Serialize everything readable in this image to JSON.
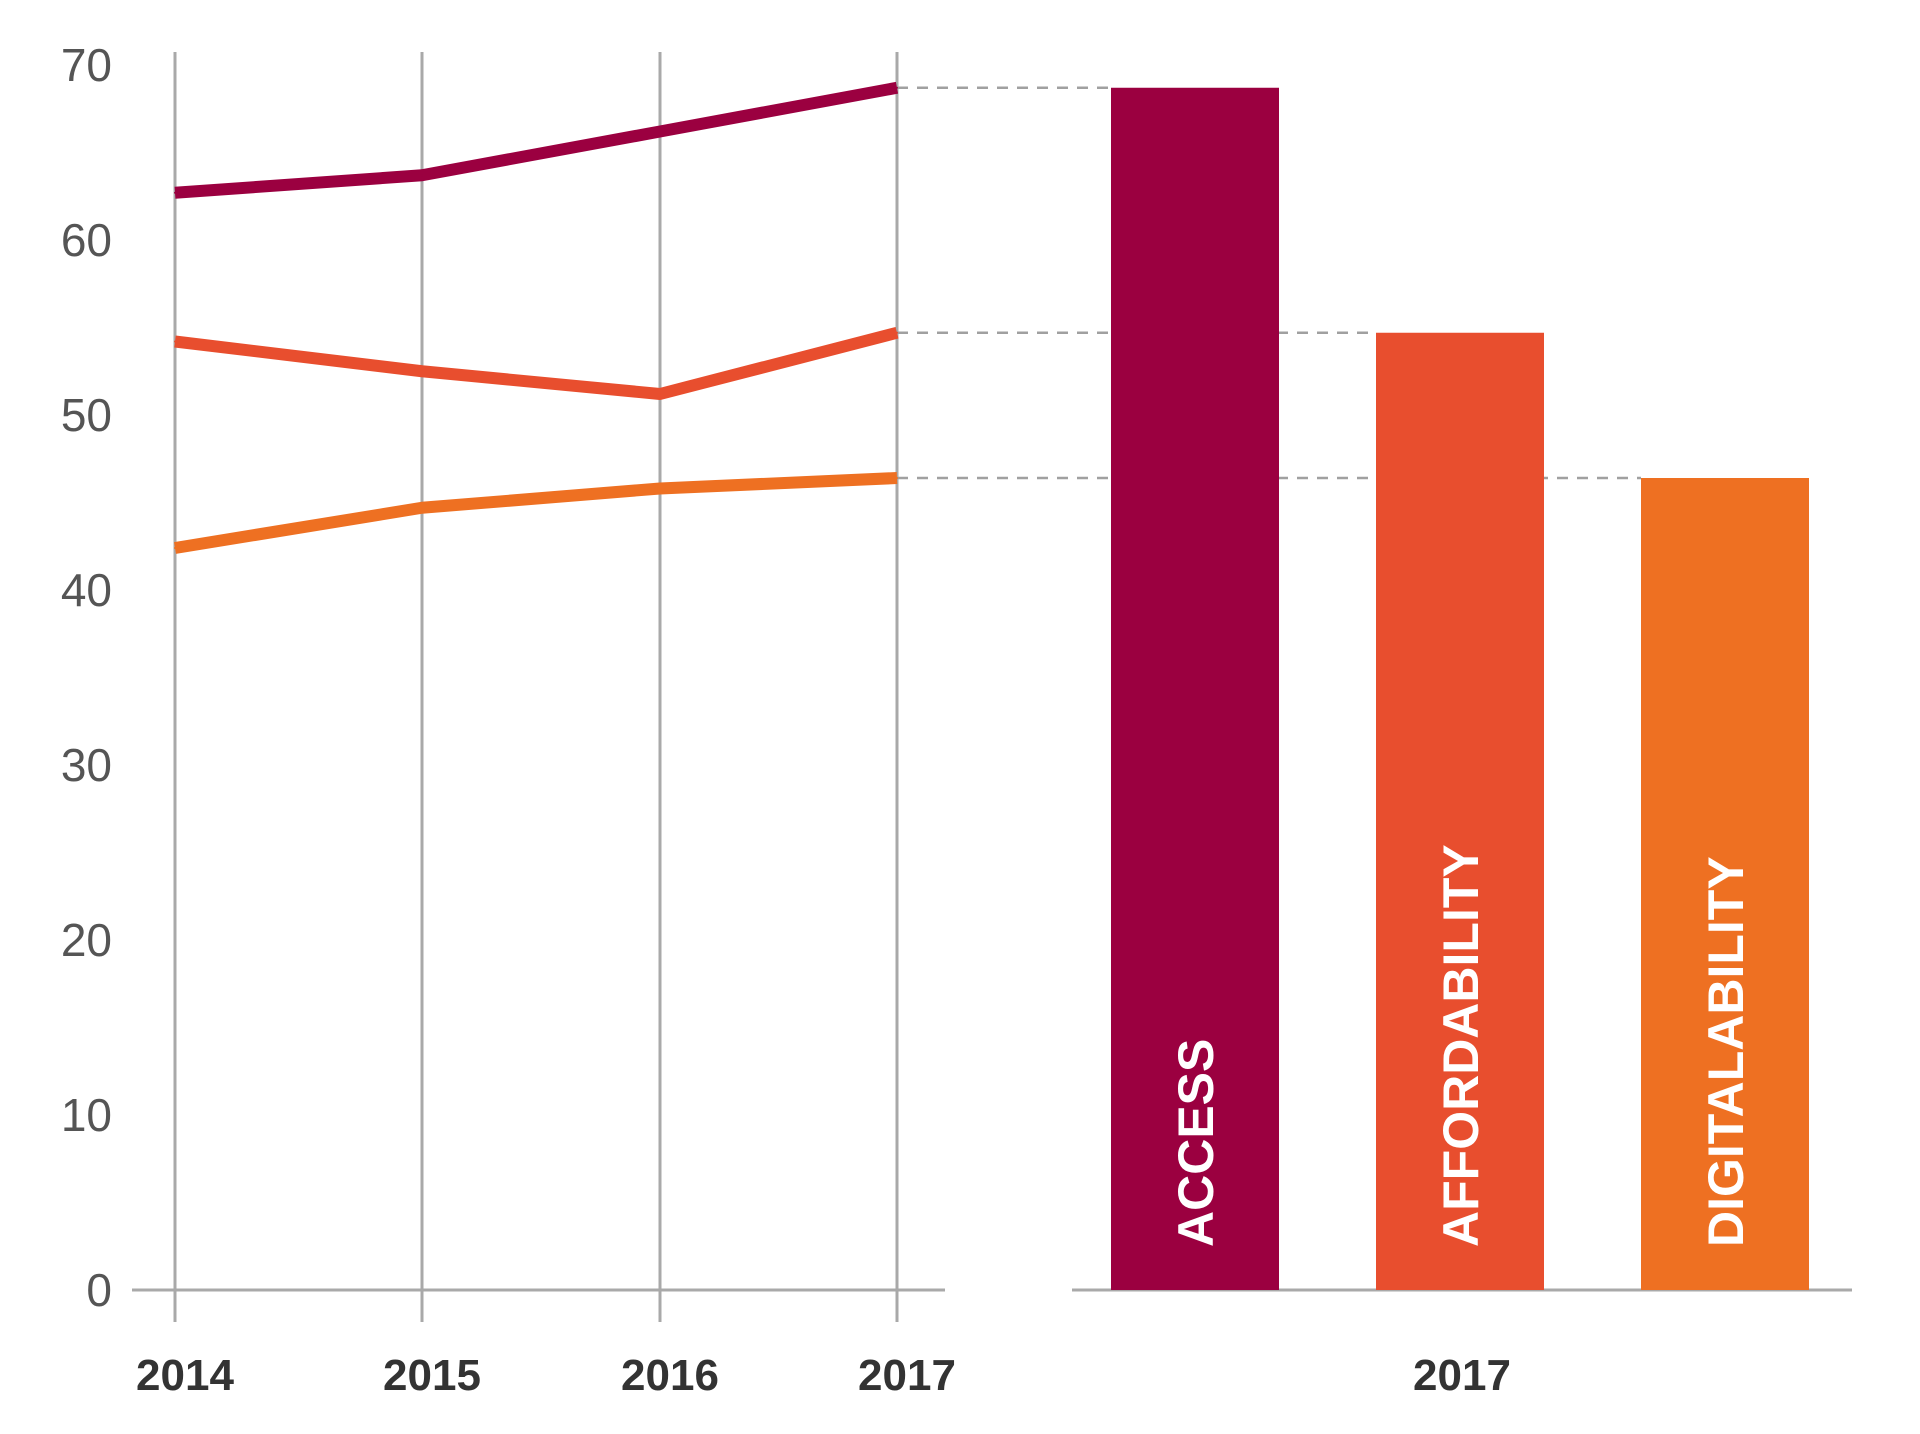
{
  "chart_data": [
    {
      "type": "line",
      "x": [
        "2014",
        "2015",
        "2016",
        "2017"
      ],
      "ylim": [
        0,
        70
      ],
      "yticks": [
        "0",
        "10",
        "20",
        "30",
        "40",
        "50",
        "60",
        "70"
      ],
      "grid": "vertical",
      "series": [
        {
          "name": "ACCESS",
          "values": [
            62.7,
            63.7,
            66.2,
            68.7
          ],
          "color": "#9B0040"
        },
        {
          "name": "AFFORDABILITY",
          "values": [
            54.2,
            52.5,
            51.2,
            54.7
          ],
          "color": "#E84E2E"
        },
        {
          "name": "DIGITAL ABILITY",
          "values": [
            42.4,
            44.7,
            45.8,
            46.4
          ],
          "color": "#EE7022"
        }
      ]
    },
    {
      "type": "bar",
      "xlabel": "2017",
      "ylim": [
        0,
        70
      ],
      "categories": [
        "ACCESS",
        "AFFORDABILITY",
        "DIGITALABILITY"
      ],
      "values": [
        68.7,
        54.7,
        46.4
      ],
      "colors": [
        "#9B0040",
        "#E84E2E",
        "#EE7022"
      ]
    }
  ]
}
